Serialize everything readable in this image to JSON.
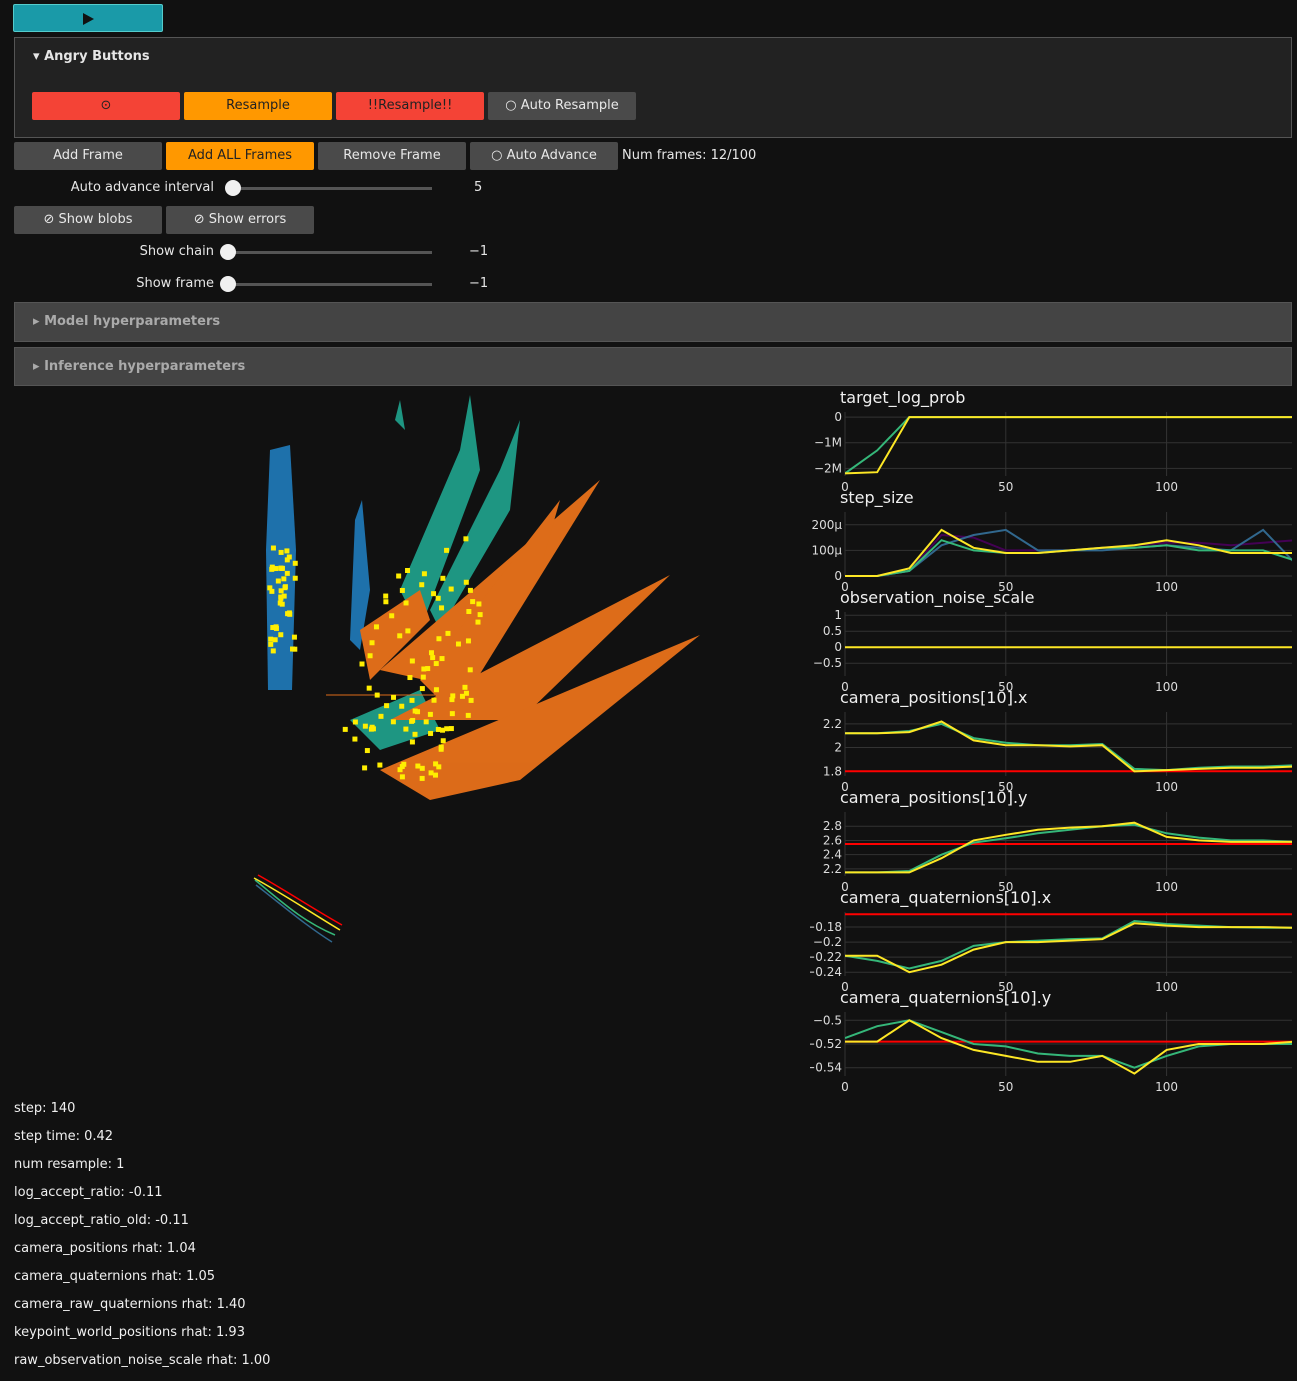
{
  "controls": {
    "angry_title": "Angry Buttons",
    "angry_buttons": [
      "Resample",
      "!!Resample!!",
      "Auto Resample"
    ],
    "frame_buttons": [
      "Add Frame",
      "Add ALL Frames",
      "Remove Frame",
      "Auto Advance"
    ],
    "num_frames": "Num frames: 12/100",
    "sliders": [
      {
        "label": "Auto advance interval",
        "value": "5"
      },
      {
        "label": "Show chain",
        "value": "−1"
      },
      {
        "label": "Show frame",
        "value": "−1"
      }
    ],
    "toggles": [
      "Show blobs",
      "Show errors"
    ],
    "sections": [
      "Model hyperparameters",
      "Inference hyperparameters"
    ]
  },
  "chart_data": [
    {
      "type": "line",
      "title": "target_log_prob",
      "x": [
        0,
        10,
        20,
        30,
        40,
        50,
        60,
        70,
        80,
        90,
        100,
        110,
        120,
        130,
        140
      ],
      "xlim": [
        0,
        139
      ],
      "xticks": [
        0,
        50,
        100
      ],
      "ylim": [
        -2300000,
        200000
      ],
      "yticks": [
        0,
        {
          "value": -1000000,
          "label": "−1M"
        },
        {
          "value": -2000000,
          "label": "−2M"
        }
      ],
      "series": [
        {
          "color": "#35b779",
          "values": [
            -2200000,
            -1300000,
            0,
            0,
            0,
            0,
            0,
            0,
            0,
            0,
            0,
            0,
            0,
            0,
            0
          ]
        },
        {
          "color": "#fde725",
          "values": [
            -2200000,
            -2150000,
            0,
            0,
            0,
            0,
            0,
            0,
            0,
            0,
            0,
            0,
            0,
            0,
            0
          ]
        }
      ]
    },
    {
      "type": "line",
      "title": "step_size",
      "x": [
        0,
        10,
        20,
        30,
        40,
        50,
        60,
        70,
        80,
        90,
        100,
        110,
        120,
        130,
        140
      ],
      "xlim": [
        0,
        139
      ],
      "xticks": [
        0,
        50,
        100
      ],
      "ylim": [
        0,
        0.00025
      ],
      "yticks": [
        0,
        {
          "value": 0.0001,
          "label": "100μ"
        },
        {
          "value": 0.0002,
          "label": "200μ"
        }
      ],
      "series": [
        {
          "color": "#440154",
          "values": [
            0,
            0,
            2e-05,
            0.00016,
            0.00015,
            0.0001,
            0.0001,
            0.0001,
            0.00011,
            0.00012,
            0.00013,
            0.00013,
            0.00012,
            0.00013,
            0.00014
          ]
        },
        {
          "color": "#31688e",
          "values": [
            0,
            0,
            2e-05,
            0.00012,
            0.00016,
            0.00018,
            0.0001,
            0.0001,
            0.0001,
            0.00011,
            0.00012,
            0.00011,
            0.0001,
            0.00018,
            5e-05
          ]
        },
        {
          "color": "#35b779",
          "values": [
            0,
            0,
            2e-05,
            0.00014,
            0.0001,
            9e-05,
            9e-05,
            0.0001,
            0.00011,
            0.00011,
            0.00012,
            0.0001,
            0.0001,
            0.0001,
            6e-05
          ]
        },
        {
          "color": "#fde725",
          "values": [
            0,
            0,
            3e-05,
            0.00018,
            0.00011,
            9e-05,
            9e-05,
            0.0001,
            0.00011,
            0.00012,
            0.00014,
            0.00012,
            9e-05,
            9e-05,
            9e-05
          ]
        }
      ]
    },
    {
      "type": "line",
      "title": "observation_noise_scale",
      "x": [
        0,
        10,
        20,
        30,
        40,
        50,
        60,
        70,
        80,
        90,
        100,
        110,
        120,
        130,
        140
      ],
      "xlim": [
        0,
        139
      ],
      "xticks": [
        0,
        50,
        100
      ],
      "ylim": [
        -0.9,
        1.1
      ],
      "yticks": [
        1,
        0.5,
        0,
        {
          "value": -0.5,
          "label": "−0.5"
        }
      ],
      "series": [
        {
          "color": "#fde725",
          "values": [
            0,
            0,
            0,
            0,
            0,
            0,
            0,
            0,
            0,
            0,
            0,
            0,
            0,
            0,
            0
          ]
        }
      ]
    },
    {
      "type": "line",
      "title": "camera_positions[10].x",
      "x": [
        0,
        10,
        20,
        30,
        40,
        50,
        60,
        70,
        80,
        90,
        100,
        110,
        120,
        130,
        140
      ],
      "xlim": [
        0,
        139
      ],
      "xticks": [
        0,
        50,
        100
      ],
      "ylim": [
        1.76,
        2.3
      ],
      "yticks": [
        2.2,
        2,
        1.8
      ],
      "series": [
        {
          "color": "#ff0000",
          "values": [
            1.8,
            1.8,
            1.8,
            1.8,
            1.8,
            1.8,
            1.8,
            1.8,
            1.8,
            1.8,
            1.8,
            1.8,
            1.8,
            1.8,
            1.8
          ]
        },
        {
          "color": "#35b779",
          "values": [
            2.12,
            2.12,
            2.14,
            2.2,
            2.08,
            2.04,
            2.02,
            2.02,
            2.03,
            1.82,
            1.81,
            1.83,
            1.84,
            1.84,
            1.85
          ]
        },
        {
          "color": "#fde725",
          "values": [
            2.12,
            2.12,
            2.13,
            2.22,
            2.06,
            2.02,
            2.02,
            2.01,
            2.02,
            1.8,
            1.81,
            1.82,
            1.83,
            1.83,
            1.84
          ]
        }
      ]
    },
    {
      "type": "line",
      "title": "camera_positions[10].y",
      "x": [
        0,
        10,
        20,
        30,
        40,
        50,
        60,
        70,
        80,
        90,
        100,
        110,
        120,
        130,
        140
      ],
      "xlim": [
        0,
        139
      ],
      "xticks": [
        0,
        50,
        100
      ],
      "ylim": [
        2.1,
        3.0
      ],
      "yticks": [
        2.8,
        2.6,
        2.4,
        2.2
      ],
      "series": [
        {
          "color": "#ff0000",
          "values": [
            2.55,
            2.55,
            2.55,
            2.55,
            2.55,
            2.55,
            2.55,
            2.55,
            2.55,
            2.55,
            2.55,
            2.55,
            2.55,
            2.55,
            2.55
          ]
        },
        {
          "color": "#35b779",
          "values": [
            2.15,
            2.15,
            2.17,
            2.4,
            2.57,
            2.63,
            2.7,
            2.75,
            2.8,
            2.82,
            2.7,
            2.64,
            2.6,
            2.6,
            2.58
          ]
        },
        {
          "color": "#fde725",
          "values": [
            2.15,
            2.15,
            2.15,
            2.35,
            2.6,
            2.68,
            2.75,
            2.78,
            2.8,
            2.85,
            2.65,
            2.6,
            2.58,
            2.58,
            2.58
          ]
        }
      ]
    },
    {
      "type": "line",
      "title": "camera_quaternions[10].x",
      "x": [
        0,
        10,
        20,
        30,
        40,
        50,
        60,
        70,
        80,
        90,
        100,
        110,
        120,
        130,
        140
      ],
      "xlim": [
        0,
        139
      ],
      "xticks": [
        0,
        50,
        100
      ],
      "ylim": [
        -0.245,
        -0.16
      ],
      "yticks": [
        {
          "value": -0.18,
          "label": "−0.18"
        },
        {
          "value": -0.2,
          "label": "−0.2"
        },
        {
          "value": -0.22,
          "label": "−0.22"
        },
        {
          "value": -0.24,
          "label": "−0.24"
        }
      ],
      "series": [
        {
          "color": "#ff0000",
          "values": [
            -0.163,
            -0.163,
            -0.163,
            -0.163,
            -0.163,
            -0.163,
            -0.163,
            -0.163,
            -0.163,
            -0.163,
            -0.163,
            -0.163,
            -0.163,
            -0.163,
            -0.163
          ]
        },
        {
          "color": "#35b779",
          "values": [
            -0.218,
            -0.225,
            -0.235,
            -0.225,
            -0.205,
            -0.2,
            -0.198,
            -0.196,
            -0.195,
            -0.172,
            -0.176,
            -0.178,
            -0.18,
            -0.181,
            -0.181
          ]
        },
        {
          "color": "#fde725",
          "values": [
            -0.218,
            -0.218,
            -0.24,
            -0.23,
            -0.21,
            -0.2,
            -0.2,
            -0.198,
            -0.196,
            -0.175,
            -0.178,
            -0.18,
            -0.18,
            -0.18,
            -0.181
          ]
        }
      ]
    },
    {
      "type": "line",
      "title": "camera_quaternions[10].y",
      "x": [
        0,
        10,
        20,
        30,
        40,
        50,
        60,
        70,
        80,
        90,
        100,
        110,
        120,
        130,
        140
      ],
      "xlim": [
        0,
        139
      ],
      "xticks": [
        0,
        50,
        100
      ],
      "ylim": [
        -0.547,
        -0.493
      ],
      "yticks": [
        {
          "value": -0.5,
          "label": "−0.5"
        },
        {
          "value": -0.52,
          "label": "−0.52"
        },
        {
          "value": -0.54,
          "label": "−0.54"
        }
      ],
      "series": [
        {
          "color": "#ff0000",
          "values": [
            -0.518,
            -0.518,
            -0.518,
            -0.518,
            -0.518,
            -0.518,
            -0.518,
            -0.518,
            -0.518,
            -0.518,
            -0.518,
            -0.518,
            -0.518,
            -0.518,
            -0.518
          ]
        },
        {
          "color": "#35b779",
          "values": [
            -0.515,
            -0.505,
            -0.5,
            -0.51,
            -0.52,
            -0.522,
            -0.528,
            -0.53,
            -0.53,
            -0.54,
            -0.53,
            -0.522,
            -0.52,
            -0.52,
            -0.52
          ]
        },
        {
          "color": "#fde725",
          "values": [
            -0.518,
            -0.518,
            -0.5,
            -0.515,
            -0.525,
            -0.53,
            -0.535,
            -0.535,
            -0.53,
            -0.545,
            -0.525,
            -0.52,
            -0.52,
            -0.52,
            -0.518
          ]
        }
      ]
    }
  ],
  "stats": [
    "step: 140",
    "step time: 0.42",
    "num resample: 1",
    "log_accept_ratio: -0.11",
    "log_accept_ratio_old: -0.11",
    "camera_positions rhat: 1.04",
    "camera_quaternions rhat: 1.05",
    "camera_raw_quaternions rhat: 1.40",
    "keypoint_world_positions rhat: 1.93",
    "raw_observation_noise_scale rhat: 1.00"
  ]
}
